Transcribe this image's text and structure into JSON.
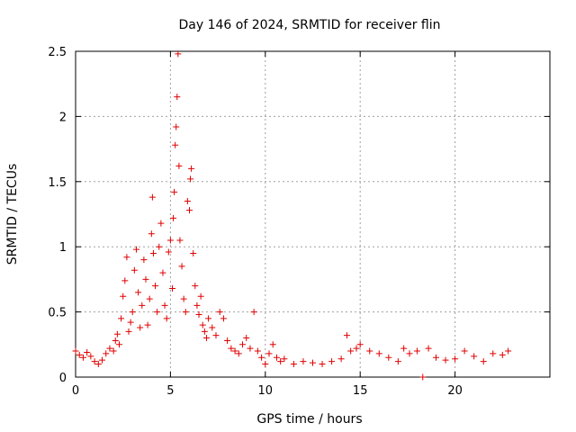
{
  "chart_data": {
    "type": "scatter",
    "title": "Day 146 of 2024, SRMTID for receiver flin",
    "xlabel": "GPS time / hours",
    "ylabel": "SRMTID / TECUs",
    "xlim": [
      0,
      25
    ],
    "ylim": [
      0,
      2.5
    ],
    "xticks": [
      0,
      5,
      10,
      15,
      20
    ],
    "xtick_labels": [
      "0",
      "5",
      "10",
      "15",
      "20"
    ],
    "yticks": [
      0,
      0.5,
      1,
      1.5,
      2,
      2.5
    ],
    "ytick_labels": [
      "0",
      "0.5",
      "1",
      "1.5",
      "2",
      "2.5"
    ],
    "grid": true,
    "marker": "plus",
    "color": "#e00000",
    "series": [
      {
        "name": "flin",
        "points": [
          [
            0.0,
            0.2
          ],
          [
            0.2,
            0.17
          ],
          [
            0.4,
            0.15
          ],
          [
            0.6,
            0.19
          ],
          [
            0.8,
            0.16
          ],
          [
            1.0,
            0.12
          ],
          [
            1.2,
            0.1
          ],
          [
            1.4,
            0.13
          ],
          [
            1.6,
            0.18
          ],
          [
            1.8,
            0.22
          ],
          [
            2.0,
            0.2
          ],
          [
            2.1,
            0.28
          ],
          [
            2.2,
            0.33
          ],
          [
            2.3,
            0.25
          ],
          [
            2.4,
            0.45
          ],
          [
            2.5,
            0.62
          ],
          [
            2.6,
            0.74
          ],
          [
            2.7,
            0.92
          ],
          [
            2.8,
            0.35
          ],
          [
            2.9,
            0.42
          ],
          [
            3.0,
            0.5
          ],
          [
            3.1,
            0.82
          ],
          [
            3.2,
            0.98
          ],
          [
            3.3,
            0.65
          ],
          [
            3.4,
            0.38
          ],
          [
            3.5,
            0.55
          ],
          [
            3.6,
            0.9
          ],
          [
            3.7,
            0.75
          ],
          [
            3.8,
            0.4
          ],
          [
            3.9,
            0.6
          ],
          [
            4.0,
            1.1
          ],
          [
            4.05,
            1.38
          ],
          [
            4.1,
            0.95
          ],
          [
            4.2,
            0.7
          ],
          [
            4.3,
            0.5
          ],
          [
            4.4,
            1.0
          ],
          [
            4.5,
            1.18
          ],
          [
            4.6,
            0.8
          ],
          [
            4.7,
            0.55
          ],
          [
            4.8,
            0.45
          ],
          [
            4.9,
            0.96
          ],
          [
            5.0,
            1.05
          ],
          [
            5.1,
            0.68
          ],
          [
            5.15,
            1.22
          ],
          [
            5.2,
            1.42
          ],
          [
            5.25,
            1.78
          ],
          [
            5.3,
            1.92
          ],
          [
            5.35,
            2.15
          ],
          [
            5.4,
            2.48
          ],
          [
            5.45,
            1.62
          ],
          [
            5.5,
            1.05
          ],
          [
            5.6,
            0.85
          ],
          [
            5.7,
            0.6
          ],
          [
            5.8,
            0.5
          ],
          [
            5.9,
            1.35
          ],
          [
            6.0,
            1.28
          ],
          [
            6.05,
            1.52
          ],
          [
            6.1,
            1.6
          ],
          [
            6.2,
            0.95
          ],
          [
            6.3,
            0.7
          ],
          [
            6.4,
            0.55
          ],
          [
            6.5,
            0.48
          ],
          [
            6.6,
            0.62
          ],
          [
            6.7,
            0.4
          ],
          [
            6.8,
            0.35
          ],
          [
            6.9,
            0.3
          ],
          [
            7.0,
            0.45
          ],
          [
            7.2,
            0.38
          ],
          [
            7.4,
            0.32
          ],
          [
            7.6,
            0.5
          ],
          [
            7.8,
            0.45
          ],
          [
            8.0,
            0.28
          ],
          [
            8.2,
            0.22
          ],
          [
            8.4,
            0.2
          ],
          [
            8.6,
            0.18
          ],
          [
            8.8,
            0.25
          ],
          [
            9.0,
            0.3
          ],
          [
            9.2,
            0.22
          ],
          [
            9.4,
            0.5
          ],
          [
            9.6,
            0.2
          ],
          [
            9.8,
            0.15
          ],
          [
            10.0,
            0.1
          ],
          [
            10.2,
            0.18
          ],
          [
            10.4,
            0.25
          ],
          [
            10.6,
            0.15
          ],
          [
            10.8,
            0.12
          ],
          [
            11.0,
            0.14
          ],
          [
            11.5,
            0.1
          ],
          [
            12.0,
            0.12
          ],
          [
            12.5,
            0.11
          ],
          [
            13.0,
            0.1
          ],
          [
            13.5,
            0.12
          ],
          [
            14.0,
            0.14
          ],
          [
            14.3,
            0.32
          ],
          [
            14.5,
            0.2
          ],
          [
            14.8,
            0.22
          ],
          [
            15.0,
            0.25
          ],
          [
            15.5,
            0.2
          ],
          [
            16.0,
            0.18
          ],
          [
            16.5,
            0.15
          ],
          [
            17.0,
            0.12
          ],
          [
            17.3,
            0.22
          ],
          [
            17.6,
            0.18
          ],
          [
            18.0,
            0.2
          ],
          [
            18.3,
            0.0
          ],
          [
            18.6,
            0.22
          ],
          [
            19.0,
            0.15
          ],
          [
            19.5,
            0.13
          ],
          [
            20.0,
            0.14
          ],
          [
            20.5,
            0.2
          ],
          [
            21.0,
            0.16
          ],
          [
            21.5,
            0.12
          ],
          [
            22.0,
            0.18
          ],
          [
            22.5,
            0.17
          ],
          [
            22.8,
            0.2
          ]
        ]
      }
    ]
  }
}
